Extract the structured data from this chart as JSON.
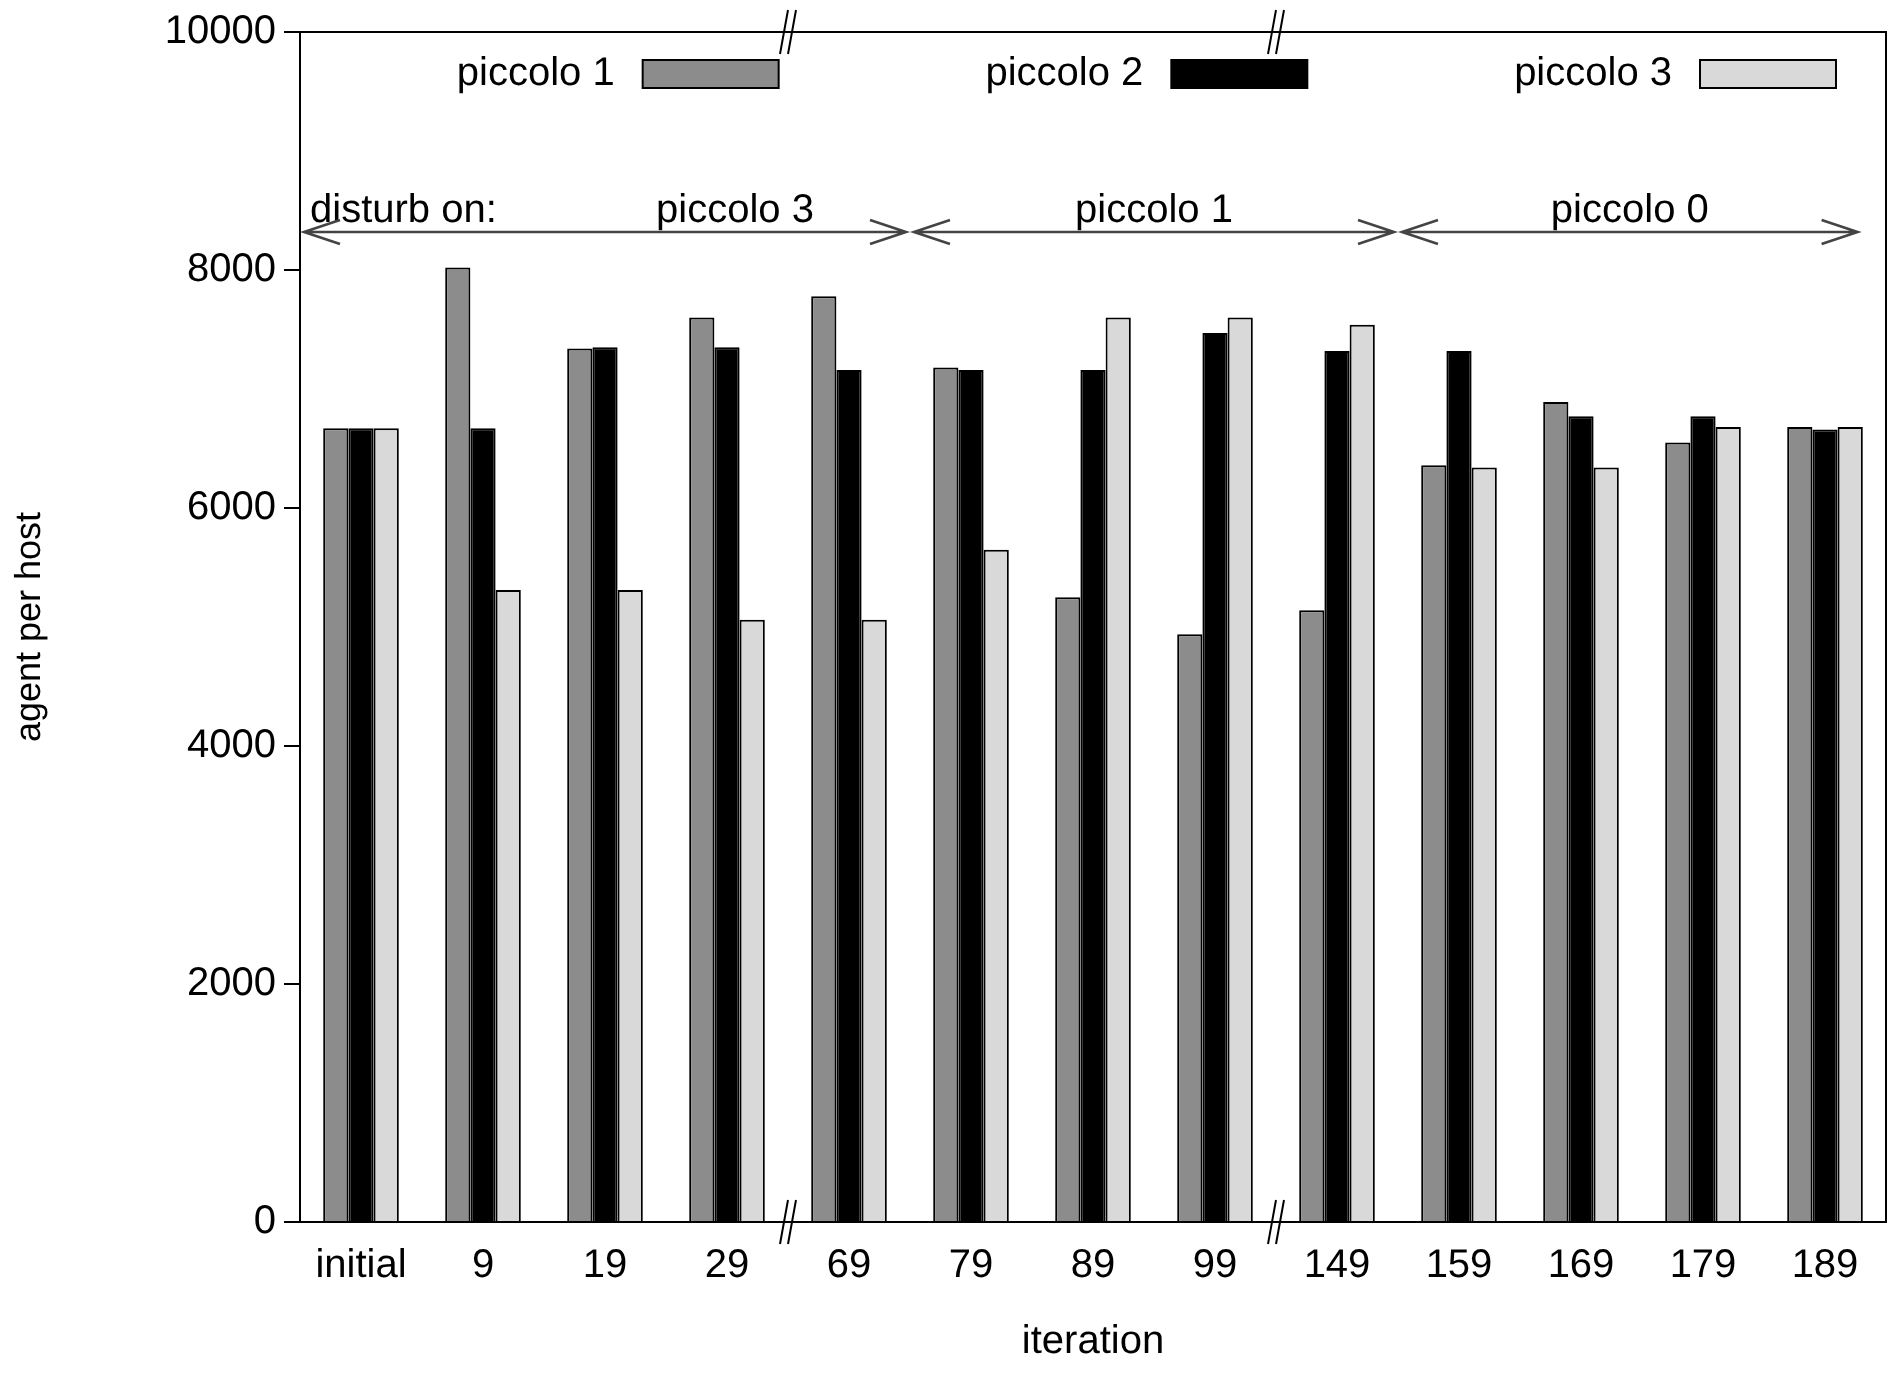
{
  "chart_data": {
    "type": "bar",
    "xlabel": "iteration",
    "ylabel": "agent per host",
    "categories": [
      "initial",
      "9",
      "19",
      "29",
      "69",
      "79",
      "89",
      "99",
      "149",
      "159",
      "169",
      "179",
      "189"
    ],
    "series": [
      {
        "name": "piccolo 1",
        "color": "#8c8c8c",
        "values": [
          6670,
          8020,
          7340,
          7600,
          7780,
          7180,
          5250,
          4940,
          5140,
          6360,
          6890,
          6550,
          6680
        ]
      },
      {
        "name": "piccolo 2",
        "color": "#000000",
        "values": [
          6670,
          6670,
          7350,
          7350,
          7160,
          7160,
          7160,
          7470,
          7320,
          7320,
          6770,
          6770,
          6660
        ]
      },
      {
        "name": "piccolo 3",
        "color": "#d9d9d9",
        "values": [
          6670,
          5310,
          5310,
          5060,
          5060,
          5650,
          7600,
          7600,
          7540,
          6340,
          6340,
          6680,
          6680
        ]
      }
    ],
    "ylim": [
      0,
      10000
    ],
    "yticks": [
      0,
      2000,
      4000,
      6000,
      8000,
      10000
    ],
    "grid": false,
    "legend": "top",
    "annotations": [
      "disturb on:",
      "piccolo 3",
      "piccolo 1",
      "piccolo 0"
    ]
  }
}
